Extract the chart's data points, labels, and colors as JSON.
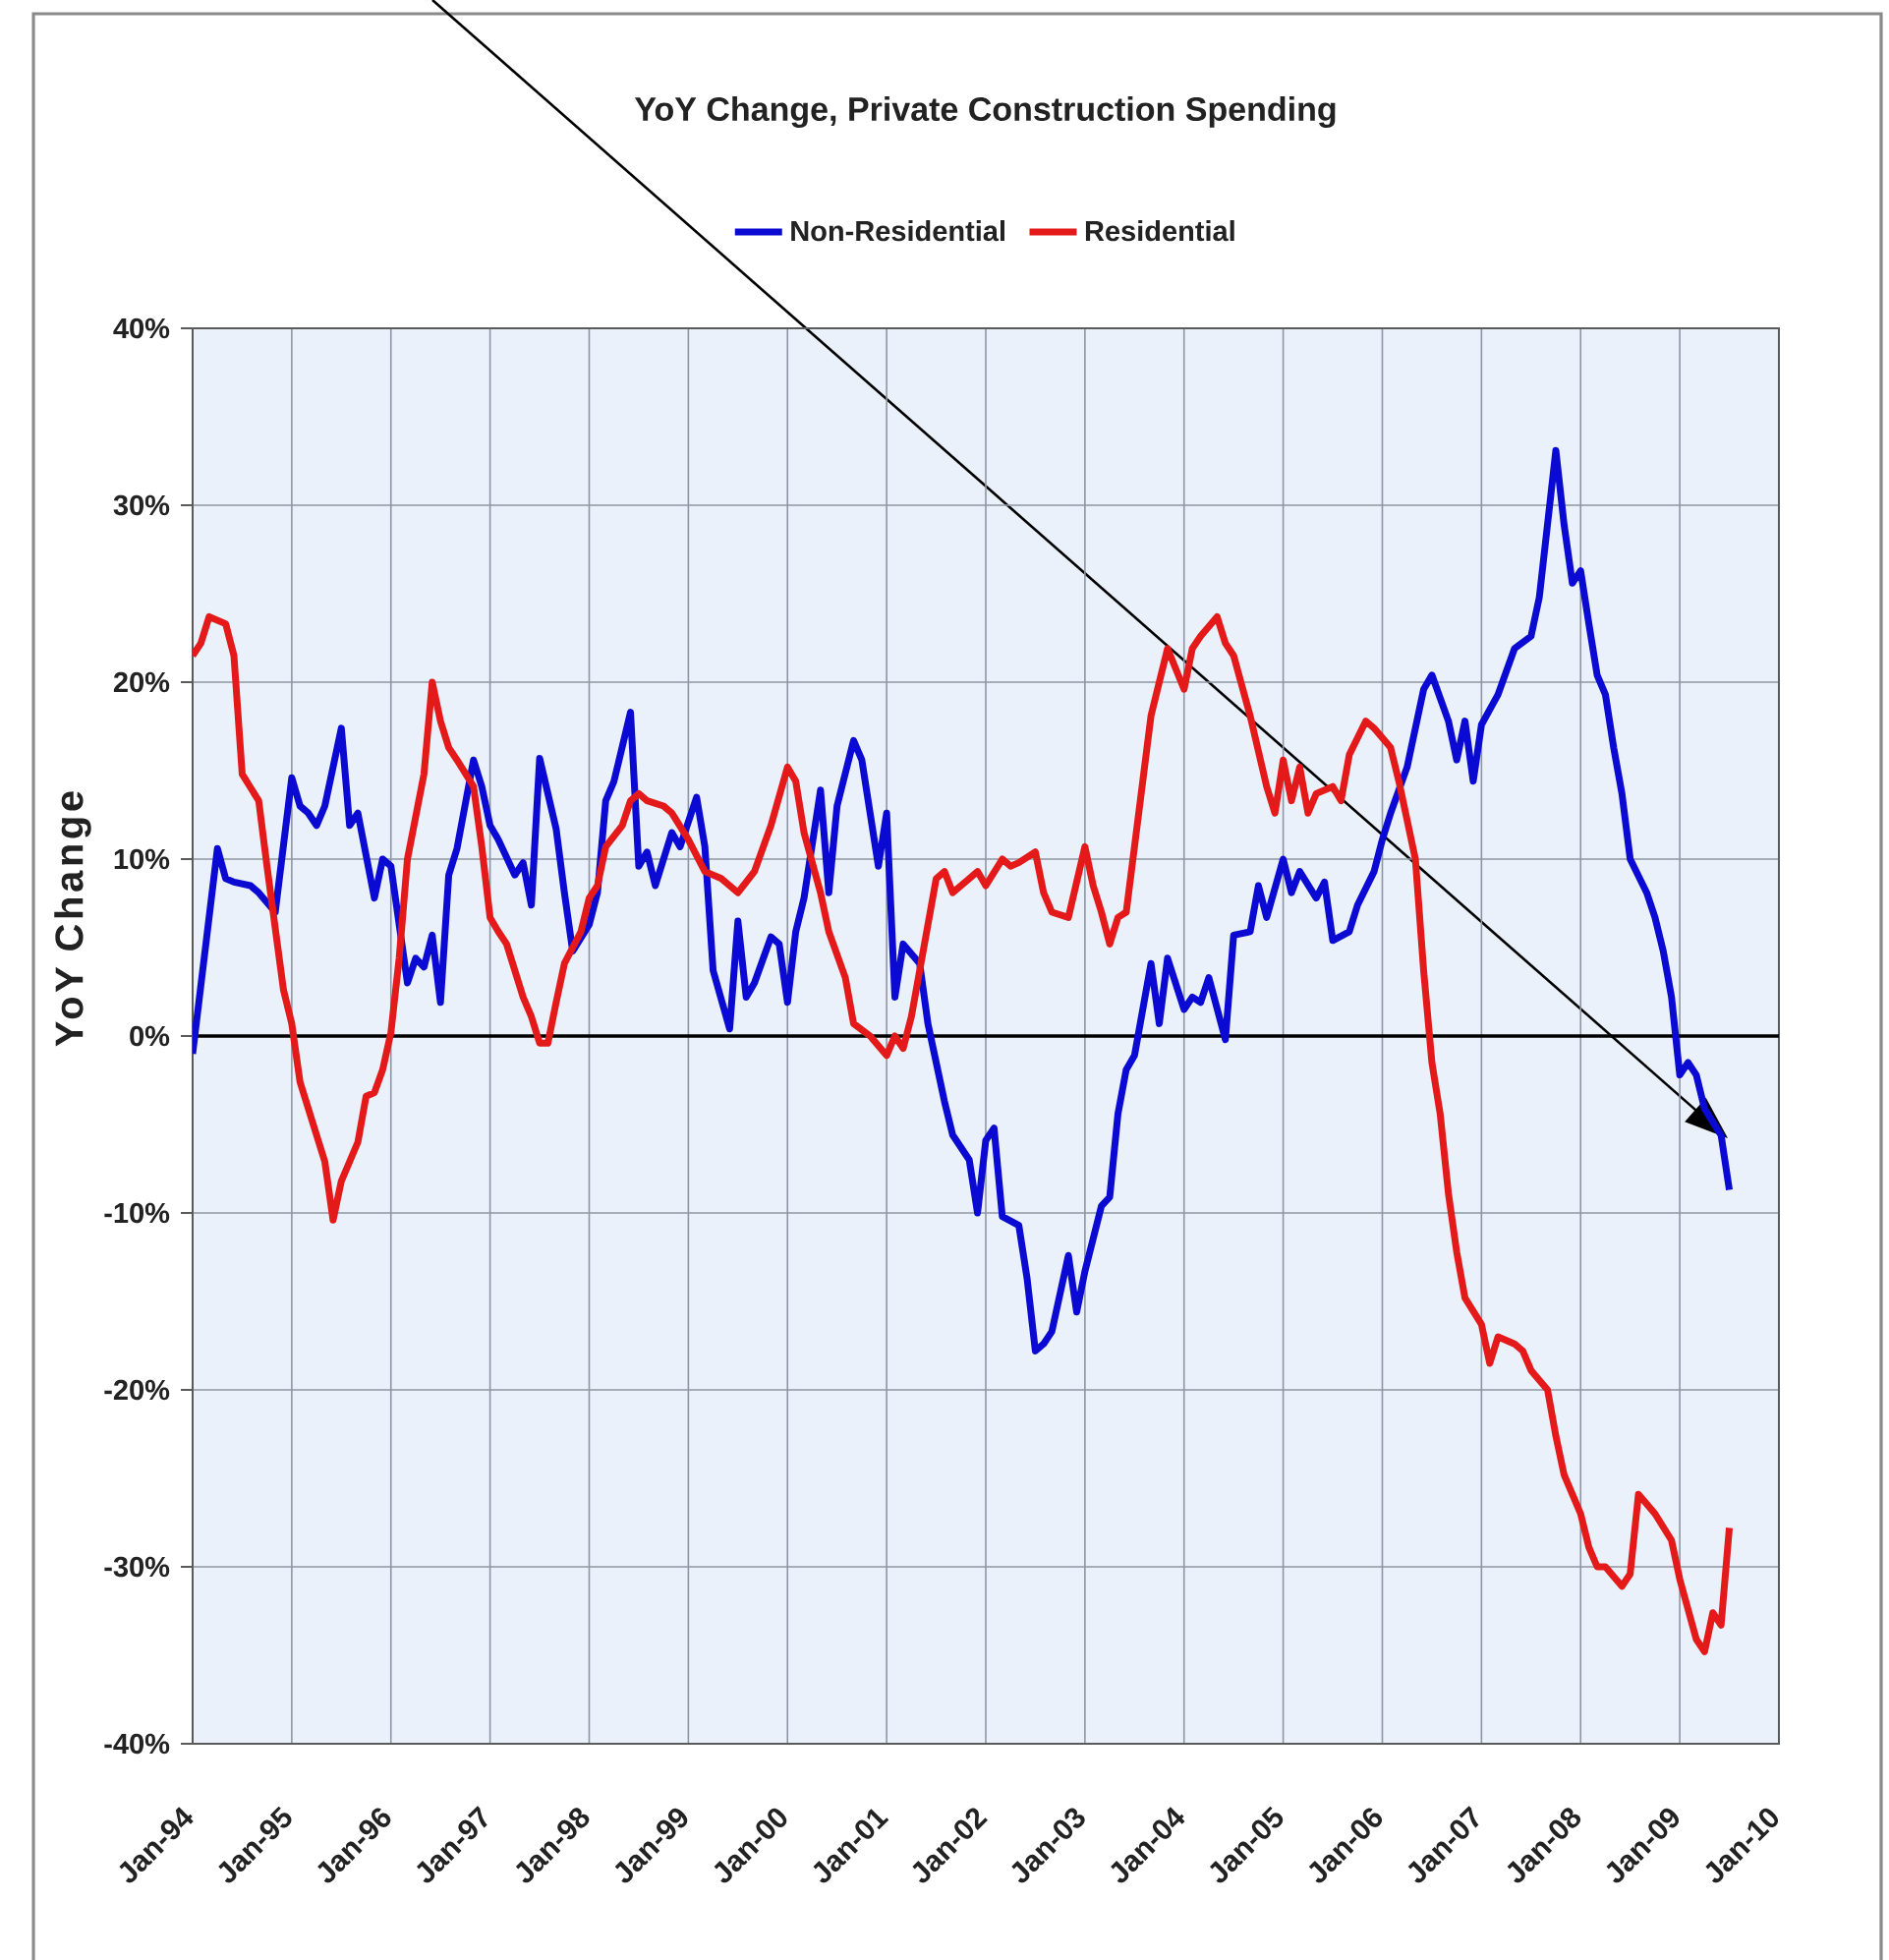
{
  "chart_data": {
    "type": "line",
    "title": "YoY Change, Private Construction Spending",
    "ylabel": "YoY Change",
    "xlim": [
      "1994-01",
      "2010-01"
    ],
    "xticks": [
      {
        "value": "1994-01",
        "label": "Jan-94"
      },
      {
        "value": "1995-01",
        "label": "Jan-95"
      },
      {
        "value": "1996-01",
        "label": "Jan-96"
      },
      {
        "value": "1997-01",
        "label": "Jan-97"
      },
      {
        "value": "1998-01",
        "label": "Jan-98"
      },
      {
        "value": "1999-01",
        "label": "Jan-99"
      },
      {
        "value": "2000-01",
        "label": "Jan-00"
      },
      {
        "value": "2001-01",
        "label": "Jan-01"
      },
      {
        "value": "2002-01",
        "label": "Jan-02"
      },
      {
        "value": "2003-01",
        "label": "Jan-03"
      },
      {
        "value": "2004-01",
        "label": "Jan-04"
      },
      {
        "value": "2005-01",
        "label": "Jan-05"
      },
      {
        "value": "2006-01",
        "label": "Jan-06"
      },
      {
        "value": "2007-01",
        "label": "Jan-07"
      },
      {
        "value": "2008-01",
        "label": "Jan-08"
      },
      {
        "value": "2009-01",
        "label": "Jan-09"
      },
      {
        "value": "2010-01",
        "label": "Jan-10"
      }
    ],
    "ylim": [
      -40,
      40
    ],
    "yticks": [
      {
        "value": -40,
        "label": "-40%"
      },
      {
        "value": -30,
        "label": "-30%"
      },
      {
        "value": -20,
        "label": "-20%"
      },
      {
        "value": -10,
        "label": "-10%"
      },
      {
        "value": 0,
        "label": "0%"
      },
      {
        "value": 10,
        "label": "10%"
      },
      {
        "value": 20,
        "label": "20%"
      },
      {
        "value": 30,
        "label": "30%"
      },
      {
        "value": 40,
        "label": "40%"
      }
    ],
    "grid": true,
    "legend": "top",
    "ref_lines": [
      {
        "axis": "y",
        "value": 0,
        "color": "#000000"
      }
    ],
    "series": [
      {
        "name": "Non-Residential",
        "color": "#0a0ad2",
        "x": [
          "1994-01",
          "1994-04",
          "1994-05",
          "1994-06",
          "1994-08",
          "1994-09",
          "1994-11",
          "1995-01",
          "1995-02",
          "1995-03",
          "1995-04",
          "1995-05",
          "1995-07",
          "1995-08",
          "1995-09",
          "1995-11",
          "1995-12",
          "1996-01",
          "1996-03",
          "1996-04",
          "1996-05",
          "1996-06",
          "1996-07",
          "1996-08",
          "1996-09",
          "1996-11",
          "1996-12",
          "1997-01",
          "1997-02",
          "1997-04",
          "1997-05",
          "1997-06",
          "1997-07",
          "1997-09",
          "1997-10",
          "1997-11",
          "1998-01",
          "1998-02",
          "1998-03",
          "1998-04",
          "1998-06",
          "1998-07",
          "1998-08",
          "1998-09",
          "1998-11",
          "1998-12",
          "1999-02",
          "1999-03",
          "1999-04",
          "1999-06",
          "1999-07",
          "1999-08",
          "1999-09",
          "1999-11",
          "1999-12",
          "2000-01",
          "2000-02",
          "2000-03",
          "2000-05",
          "2000-06",
          "2000-07",
          "2000-09",
          "2000-10",
          "2000-11",
          "2000-12",
          "2001-01",
          "2001-02",
          "2001-03",
          "2001-05",
          "2001-06",
          "2001-08",
          "2001-09",
          "2001-11",
          "2001-12",
          "2002-01",
          "2002-02",
          "2002-03",
          "2002-05",
          "2002-06",
          "2002-07",
          "2002-08",
          "2002-09",
          "2002-11",
          "2002-12",
          "2003-01",
          "2003-03",
          "2003-04",
          "2003-05",
          "2003-06",
          "2003-07",
          "2003-09",
          "2003-10",
          "2003-11",
          "2004-01",
          "2004-02",
          "2004-03",
          "2004-04",
          "2004-06",
          "2004-07",
          "2004-09",
          "2004-10",
          "2004-11",
          "2005-01",
          "2005-02",
          "2005-03",
          "2005-05",
          "2005-06",
          "2005-07",
          "2005-09",
          "2005-10",
          "2005-12",
          "2006-01",
          "2006-02",
          "2006-04",
          "2006-06",
          "2006-07",
          "2006-09",
          "2006-10",
          "2006-11",
          "2006-12",
          "2007-01",
          "2007-03",
          "2007-05",
          "2007-07",
          "2007-08",
          "2007-10",
          "2007-11",
          "2007-12",
          "2008-01",
          "2008-02",
          "2008-03",
          "2008-04",
          "2008-05",
          "2008-06",
          "2008-07",
          "2008-09",
          "2008-10",
          "2008-11",
          "2008-12",
          "2009-01",
          "2009-02",
          "2009-03",
          "2009-04",
          "2009-06",
          "2009-07"
        ],
        "values": [
          -1,
          10.6,
          8.9,
          8.7,
          8.5,
          8.1,
          7,
          14.6,
          13,
          12.6,
          11.9,
          13,
          17.4,
          11.9,
          12.6,
          7.8,
          10,
          9.6,
          3,
          4.4,
          3.9,
          5.7,
          1.9,
          9.1,
          10.6,
          15.6,
          14.1,
          11.9,
          11.1,
          9.1,
          9.8,
          7.4,
          15.7,
          11.7,
          8.1,
          4.8,
          6.3,
          8.1,
          13.3,
          14.4,
          18.3,
          9.6,
          10.4,
          8.5,
          11.5,
          10.7,
          13.5,
          10.7,
          3.7,
          0.4,
          6.5,
          2.2,
          3,
          5.6,
          5.2,
          1.9,
          5.9,
          7.8,
          13.9,
          8.1,
          13,
          16.7,
          15.6,
          12.6,
          9.6,
          12.6,
          2.2,
          5.2,
          4.1,
          0.7,
          -3.7,
          -5.6,
          -7,
          -10,
          -5.9,
          -5.2,
          -10.2,
          -10.7,
          -13.7,
          -17.8,
          -17.4,
          -16.7,
          -12.4,
          -15.6,
          -13.3,
          -9.6,
          -9.1,
          -4.4,
          -1.9,
          -1.1,
          4.1,
          0.7,
          4.4,
          1.5,
          2.2,
          1.9,
          3.3,
          -0.2,
          5.7,
          5.9,
          8.5,
          6.7,
          10,
          8.1,
          9.3,
          7.8,
          8.7,
          5.4,
          5.9,
          7.4,
          9.3,
          11.1,
          12.6,
          15.2,
          19.6,
          20.4,
          17.8,
          15.6,
          17.8,
          14.4,
          17.6,
          19.3,
          21.9,
          22.6,
          24.8,
          33.1,
          28.9,
          25.6,
          26.3,
          23.3,
          20.4,
          19.3,
          16.3,
          13.7,
          10,
          8.1,
          6.7,
          4.8,
          2.2,
          -2.2,
          -1.5,
          -2.2,
          -4.1,
          -5.6,
          -8.7
        ]
      },
      {
        "name": "Residential",
        "color": "#e41a1a",
        "x": [
          "1994-01",
          "1994-02",
          "1994-03",
          "1994-05",
          "1994-06",
          "1994-07",
          "1994-09",
          "1994-10",
          "1994-12",
          "1995-01",
          "1995-02",
          "1995-05",
          "1995-06",
          "1995-07",
          "1995-09",
          "1995-10",
          "1995-11",
          "1995-12",
          "1996-01",
          "1996-02",
          "1996-03",
          "1996-05",
          "1996-06",
          "1996-07",
          "1996-08",
          "1996-09",
          "1996-11",
          "1996-12",
          "1997-01",
          "1997-02",
          "1997-03",
          "1997-05",
          "1997-06",
          "1997-07",
          "1997-08",
          "1997-09",
          "1997-10",
          "1997-12",
          "1998-01",
          "1998-02",
          "1998-03",
          "1998-05",
          "1998-06",
          "1998-07",
          "1998-08",
          "1998-10",
          "1998-11",
          "1999-01",
          "1999-03",
          "1999-05",
          "1999-07",
          "1999-09",
          "1999-11",
          "2000-01",
          "2000-02",
          "2000-03",
          "2000-05",
          "2000-06",
          "2000-08",
          "2000-09",
          "2000-11",
          "2001-01",
          "2001-02",
          "2001-03",
          "2001-04",
          "2001-05",
          "2001-07",
          "2001-08",
          "2001-09",
          "2001-11",
          "2001-12",
          "2002-01",
          "2002-03",
          "2002-04",
          "2002-05",
          "2002-07",
          "2002-08",
          "2002-09",
          "2002-11",
          "2003-01",
          "2003-02",
          "2003-03",
          "2003-04",
          "2003-05",
          "2003-06",
          "2003-08",
          "2003-09",
          "2003-11",
          "2004-01",
          "2004-02",
          "2004-03",
          "2004-05",
          "2004-06",
          "2004-07",
          "2004-09",
          "2004-11",
          "2004-12",
          "2005-01",
          "2005-02",
          "2005-03",
          "2005-04",
          "2005-05",
          "2005-07",
          "2005-08",
          "2005-09",
          "2005-11",
          "2005-12",
          "2006-02",
          "2006-03",
          "2006-05",
          "2006-06",
          "2006-07",
          "2006-08",
          "2006-09",
          "2006-10",
          "2006-11",
          "2007-01",
          "2007-02",
          "2007-03",
          "2007-05",
          "2007-06",
          "2007-07",
          "2007-09",
          "2007-10",
          "2007-11",
          "2008-01",
          "2008-02",
          "2008-03",
          "2008-04",
          "2008-06",
          "2008-07",
          "2008-08",
          "2008-10",
          "2008-12",
          "2009-01",
          "2009-03",
          "2009-04",
          "2009-05",
          "2009-06",
          "2009-07"
        ],
        "values": [
          21.5,
          22.2,
          23.7,
          23.3,
          21.5,
          14.8,
          13.3,
          9.6,
          2.6,
          0.7,
          -2.6,
          -7.1,
          -10.4,
          -8.2,
          -6,
          -3.4,
          -3.2,
          -1.9,
          0.2,
          4.4,
          10,
          14.8,
          20,
          17.8,
          16.3,
          15.6,
          14.1,
          10.7,
          6.7,
          5.9,
          5.2,
          2.2,
          1.1,
          -0.4,
          -0.4,
          1.9,
          4.1,
          5.9,
          7.8,
          8.5,
          10.7,
          11.9,
          13.3,
          13.7,
          13.3,
          13,
          12.6,
          11.1,
          9.3,
          8.9,
          8.1,
          9.3,
          11.9,
          15.2,
          14.4,
          11.5,
          8.1,
          5.9,
          3.3,
          0.7,
          0,
          -1.1,
          0,
          -0.7,
          1.1,
          3.7,
          8.9,
          9.3,
          8.1,
          8.9,
          9.3,
          8.5,
          10,
          9.6,
          9.8,
          10.4,
          8.1,
          7,
          6.7,
          10.7,
          8.5,
          7,
          5.2,
          6.7,
          7,
          14.4,
          18.1,
          21.9,
          19.6,
          21.9,
          22.6,
          23.7,
          22.2,
          21.5,
          18.1,
          14.1,
          12.6,
          15.6,
          13.3,
          15.2,
          12.6,
          13.7,
          14.1,
          13.3,
          15.9,
          17.8,
          17.4,
          16.3,
          14.4,
          10,
          3.7,
          -1.5,
          -4.4,
          -8.9,
          -12.2,
          -14.8,
          -16.3,
          -18.5,
          -17,
          -17.4,
          -17.8,
          -18.9,
          -20,
          -22.6,
          -24.8,
          -27,
          -28.9,
          -30,
          -30,
          -31.1,
          -30.4,
          -25.9,
          -27,
          -28.5,
          -30.7,
          -34.1,
          -34.8,
          -32.6,
          -33.3,
          -27.8
        ]
      }
    ]
  }
}
